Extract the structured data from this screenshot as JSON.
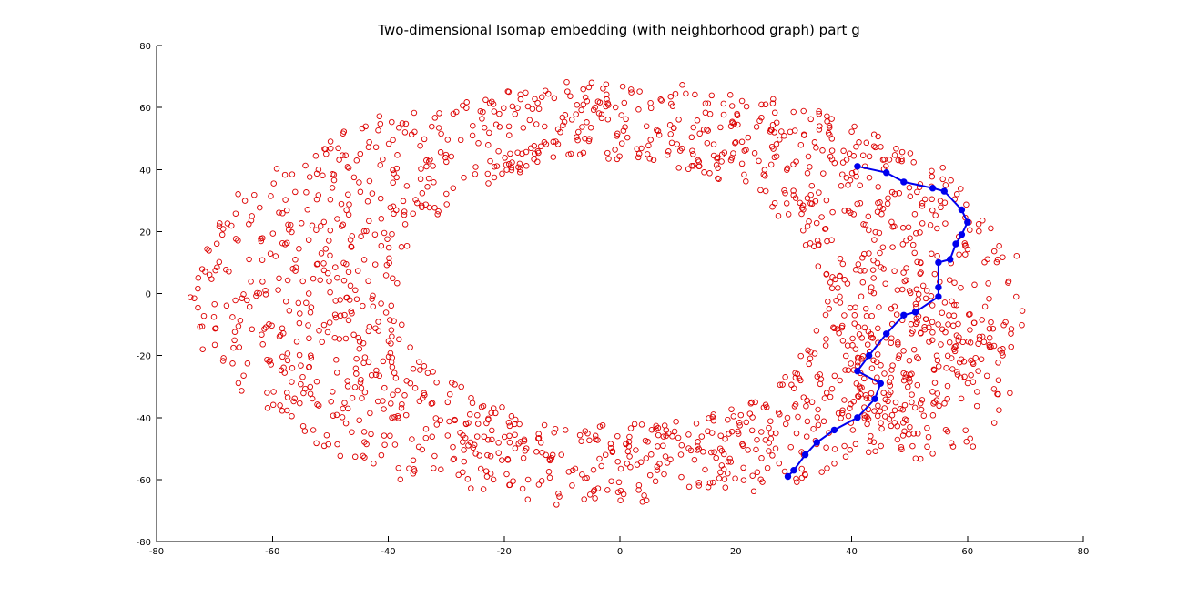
{
  "chart_data": {
    "type": "scatter",
    "title": "Two-dimensional Isomap embedding (with neighborhood graph) part g",
    "xlabel": "",
    "ylabel": "",
    "xlim": [
      -80,
      80
    ],
    "ylim": [
      -80,
      80
    ],
    "xticks": [
      -80,
      -60,
      -40,
      -20,
      0,
      20,
      40,
      60,
      80
    ],
    "yticks": [
      -80,
      -60,
      -40,
      -20,
      0,
      20,
      40,
      60,
      80
    ],
    "grid": false,
    "colors": {
      "points": "#dd0000",
      "path": "#0000ee"
    },
    "series": [
      {
        "marker": "open-circle",
        "distribution": "elliptical-ring",
        "ring_center": [
          -2,
          0
        ],
        "inner_radii": [
          37,
          43
        ],
        "outer_radii": [
          72,
          68
        ],
        "bulge_region": {
          "x_range": [
            40,
            68
          ],
          "y_range": [
            -55,
            5
          ]
        },
        "approximate_count": 1600
      },
      {
        "marker": "filled-circle",
        "line": "solid",
        "x": [
          41,
          46,
          49,
          54,
          56,
          59,
          60,
          59,
          58,
          57,
          55,
          55,
          55,
          51,
          49,
          46,
          43,
          41,
          45,
          44,
          41,
          37,
          34,
          32,
          30,
          29
        ],
        "y": [
          41,
          39,
          36,
          34,
          33,
          27,
          23,
          19,
          16,
          11,
          10,
          2,
          -1,
          -6,
          -7,
          -13,
          -20,
          -25,
          -29,
          -34,
          -40,
          -44,
          -48,
          -52,
          -57,
          -59
        ]
      }
    ]
  }
}
